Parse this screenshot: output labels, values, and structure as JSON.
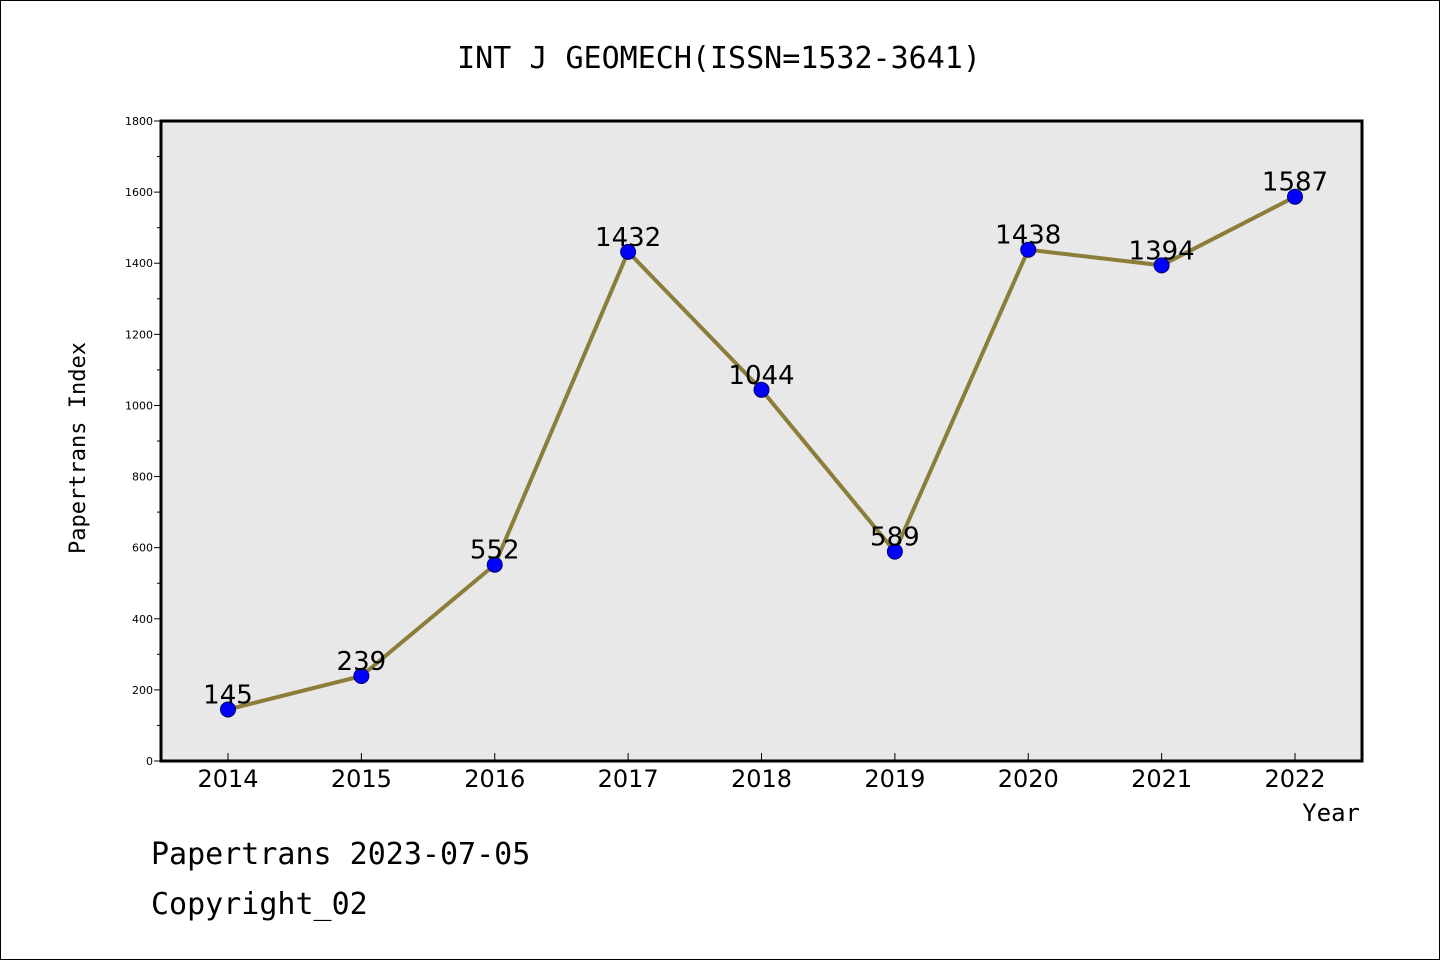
{
  "chart_data": {
    "type": "line",
    "title": "INT J GEOMECH(ISSN=1532-3641)",
    "xlabel": "Year",
    "ylabel": "Papertrans Index",
    "categories": [
      "2014",
      "2015",
      "2016",
      "2017",
      "2018",
      "2019",
      "2020",
      "2021",
      "2022"
    ],
    "series": [
      {
        "values": [
          145,
          239,
          552,
          1432,
          1044,
          589,
          1438,
          1394,
          1587
        ],
        "labels": [
          "145",
          "239",
          "552",
          "1432",
          "1044",
          "589",
          "1438",
          "1394",
          "1587"
        ]
      }
    ],
    "ylim": [
      0,
      1800
    ],
    "y_ticks": [
      "0",
      "200",
      "400",
      "600",
      "800",
      "1000",
      "1200",
      "1400",
      "1600",
      "1800"
    ],
    "y_tick_values": [
      0,
      200,
      400,
      600,
      800,
      1000,
      1200,
      1400,
      1600,
      1800
    ],
    "grid": false,
    "legend": "none",
    "colors": {
      "line": "#8b7d3a",
      "marker": "#0000ff",
      "plot_background": "#e8e8e8"
    }
  },
  "footer": {
    "line1": "Papertrans 2023-07-05",
    "line2": "Copyright_02"
  }
}
